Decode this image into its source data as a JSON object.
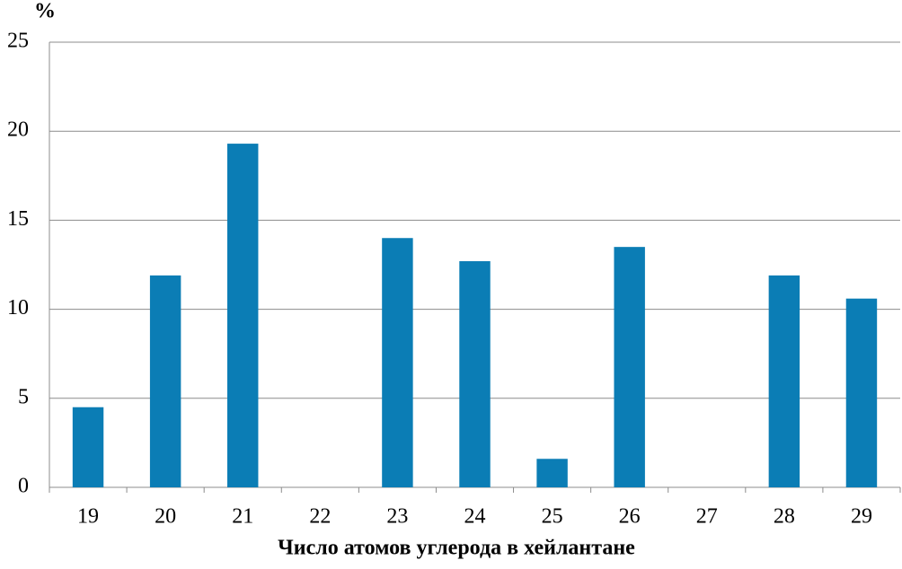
{
  "chart_data": {
    "type": "bar",
    "y_label": "%",
    "x_label": "Число атомов углерода в хейлантане",
    "categories": [
      "19",
      "20",
      "21",
      "22",
      "23",
      "24",
      "25",
      "26",
      "27",
      "28",
      "29"
    ],
    "values": [
      4.5,
      11.9,
      19.3,
      0,
      14.0,
      12.7,
      1.6,
      13.5,
      0,
      11.9,
      10.6
    ],
    "color": "#0b7db5",
    "ylim": [
      0,
      25
    ],
    "yticks": [
      0,
      5,
      10,
      15,
      20,
      25
    ],
    "grid": true
  }
}
